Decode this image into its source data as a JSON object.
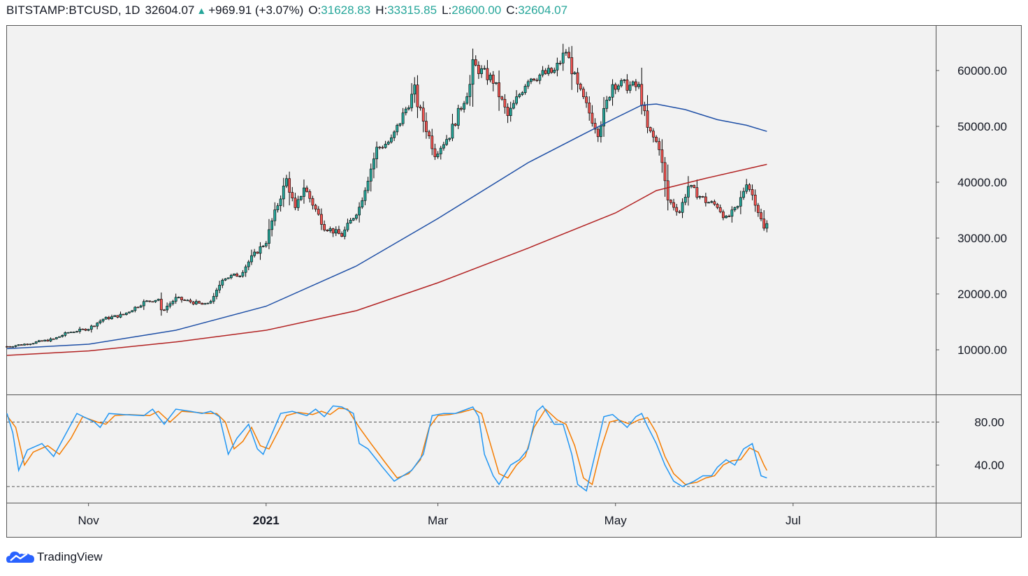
{
  "header": {
    "symbol": "BITSTAMP:BTCUSD, 1D",
    "last": "32604.07",
    "change": "+969.91 (+3.07%)",
    "o_label": "O:",
    "o_value": "31628.83",
    "h_label": "H:",
    "h_value": "33315.85",
    "l_label": "L:",
    "l_value": "28600.00",
    "c_label": "C:",
    "c_value": "32604.07",
    "up_color": "#26a69a"
  },
  "footer": {
    "brand": "TradingView",
    "logo_icon": "tradingview-cloud-icon"
  },
  "colors": {
    "up": "#26a69a",
    "down": "#ef5350",
    "candle_outline": "#000000",
    "ma_fast": "#1e4fa6",
    "ma_slow": "#b22222",
    "stoch_k": "#2196f3",
    "stoch_d": "#f57c00",
    "background": "#f2f2f2"
  },
  "chart_data": [
    {
      "type": "candlestick",
      "title": "BITSTAMP:BTCUSD, 1D",
      "ylim": [
        2000,
        68000
      ],
      "y_ticks": [
        "60000.00",
        "50000.00",
        "40000.00",
        "30000.00",
        "20000.00",
        "10000.00"
      ],
      "y_tick_values": [
        60000,
        50000,
        40000,
        30000,
        20000,
        10000
      ],
      "x_tick_labels": [
        "Nov",
        "2021",
        "Mar",
        "May",
        "Jul"
      ],
      "x_tick_dates": [
        "2020-11-01",
        "2021-01-01",
        "2021-03-01",
        "2021-05-01",
        "2021-07-01"
      ],
      "x_range": [
        "2020-10-04",
        "2021-08-19"
      ],
      "price_anchors": [
        [
          "2020-10-04",
          10600
        ],
        [
          "2020-10-10",
          11000
        ],
        [
          "2020-10-20",
          11900
        ],
        [
          "2020-10-25",
          13100
        ],
        [
          "2020-11-01",
          13800
        ],
        [
          "2020-11-06",
          15500
        ],
        [
          "2020-11-13",
          16300
        ],
        [
          "2020-11-20",
          18500
        ],
        [
          "2020-11-25",
          19100
        ],
        [
          "2020-11-26",
          16900
        ],
        [
          "2020-12-01",
          19200
        ],
        [
          "2020-12-11",
          18000
        ],
        [
          "2020-12-14",
          19300
        ],
        [
          "2020-12-17",
          22800
        ],
        [
          "2020-12-23",
          23500
        ],
        [
          "2020-12-27",
          26500
        ],
        [
          "2021-01-01",
          29400
        ],
        [
          "2021-01-03",
          33000
        ],
        [
          "2021-01-08",
          40500
        ],
        [
          "2021-01-11",
          35000
        ],
        [
          "2021-01-14",
          39200
        ],
        [
          "2021-01-21",
          32000
        ],
        [
          "2021-01-27",
          30500
        ],
        [
          "2021-02-02",
          35500
        ],
        [
          "2021-02-08",
          46000
        ],
        [
          "2021-02-13",
          47500
        ],
        [
          "2021-02-21",
          56500
        ],
        [
          "2021-02-22",
          54000
        ],
        [
          "2021-02-28",
          45200
        ],
        [
          "2021-03-05",
          48500
        ],
        [
          "2021-03-12",
          57400
        ],
        [
          "2021-03-13",
          61000
        ],
        [
          "2021-03-20",
          58200
        ],
        [
          "2021-03-25",
          51800
        ],
        [
          "2021-04-01",
          58700
        ],
        [
          "2021-04-10",
          59800
        ],
        [
          "2021-04-14",
          63500
        ],
        [
          "2021-04-18",
          57000
        ],
        [
          "2021-04-25",
          49000
        ],
        [
          "2021-04-30",
          57700
        ],
        [
          "2021-05-09",
          57000
        ],
        [
          "2021-05-12",
          49500
        ],
        [
          "2021-05-16",
          46400
        ],
        [
          "2021-05-19",
          36800
        ],
        [
          "2021-05-23",
          34700
        ],
        [
          "2021-05-26",
          39300
        ],
        [
          "2021-06-01",
          36600
        ],
        [
          "2021-06-05",
          35800
        ],
        [
          "2021-06-08",
          33400
        ],
        [
          "2021-06-12",
          35500
        ],
        [
          "2021-06-15",
          40100
        ],
        [
          "2021-06-18",
          36500
        ],
        [
          "2021-06-21",
          31600
        ],
        [
          "2021-06-22",
          32604
        ]
      ],
      "ma_fast_anchors": [
        [
          "2020-10-04",
          10200
        ],
        [
          "2020-11-01",
          11000
        ],
        [
          "2020-12-01",
          13500
        ],
        [
          "2021-01-01",
          17800
        ],
        [
          "2021-02-01",
          25000
        ],
        [
          "2021-03-01",
          33500
        ],
        [
          "2021-04-01",
          43500
        ],
        [
          "2021-04-20",
          48600
        ],
        [
          "2021-05-01",
          51500
        ],
        [
          "2021-05-10",
          53800
        ],
        [
          "2021-05-15",
          54000
        ],
        [
          "2021-05-25",
          53000
        ],
        [
          "2021-06-05",
          51200
        ],
        [
          "2021-06-15",
          50200
        ],
        [
          "2021-06-22",
          49100
        ]
      ],
      "ma_slow_anchors": [
        [
          "2020-10-04",
          9000
        ],
        [
          "2020-11-01",
          9800
        ],
        [
          "2020-12-01",
          11400
        ],
        [
          "2021-01-01",
          13500
        ],
        [
          "2021-02-01",
          17000
        ],
        [
          "2021-03-01",
          22000
        ],
        [
          "2021-04-01",
          28200
        ],
        [
          "2021-05-01",
          34500
        ],
        [
          "2021-05-15",
          38500
        ],
        [
          "2021-06-01",
          40700
        ],
        [
          "2021-06-22",
          43200
        ]
      ]
    },
    {
      "type": "line",
      "title": "",
      "ylim": [
        5,
        105
      ],
      "y_ticks": [
        "80.00",
        "40.00"
      ],
      "y_tick_values": [
        80,
        40
      ],
      "bands": [
        80,
        20
      ],
      "series": [
        {
          "key": "k",
          "anchors": [
            [
              "2020-10-04",
              88
            ],
            [
              "2020-10-06",
              70
            ],
            [
              "2020-10-08",
              35
            ],
            [
              "2020-10-11",
              54
            ],
            [
              "2020-10-16",
              60
            ],
            [
              "2020-10-20",
              48
            ],
            [
              "2020-10-24",
              68
            ],
            [
              "2020-10-28",
              88
            ],
            [
              "2020-11-03",
              80
            ],
            [
              "2020-11-05",
              75
            ],
            [
              "2020-11-08",
              88
            ],
            [
              "2020-11-13",
              87
            ],
            [
              "2020-11-20",
              86
            ],
            [
              "2020-11-23",
              92
            ],
            [
              "2020-11-27",
              78
            ],
            [
              "2020-12-01",
              92
            ],
            [
              "2020-12-06",
              90
            ],
            [
              "2020-12-10",
              88
            ],
            [
              "2020-12-13",
              90
            ],
            [
              "2020-12-16",
              85
            ],
            [
              "2020-12-19",
              50
            ],
            [
              "2020-12-22",
              65
            ],
            [
              "2020-12-26",
              78
            ],
            [
              "2020-12-29",
              55
            ],
            [
              "2020-12-31",
              50
            ],
            [
              "2021-01-06",
              88
            ],
            [
              "2021-01-10",
              90
            ],
            [
              "2021-01-15",
              86
            ],
            [
              "2021-01-18",
              92
            ],
            [
              "2021-01-21",
              85
            ],
            [
              "2021-01-24",
              95
            ],
            [
              "2021-01-27",
              94
            ],
            [
              "2021-01-31",
              88
            ],
            [
              "2021-02-02",
              60
            ],
            [
              "2021-02-05",
              55
            ],
            [
              "2021-02-10",
              38
            ],
            [
              "2021-02-14",
              25
            ],
            [
              "2021-02-17",
              30
            ],
            [
              "2021-02-20",
              35
            ],
            [
              "2021-02-24",
              50
            ],
            [
              "2021-02-27",
              86
            ],
            [
              "2021-03-03",
              88
            ],
            [
              "2021-03-07",
              88
            ],
            [
              "2021-03-11",
              92
            ],
            [
              "2021-03-13",
              94
            ],
            [
              "2021-03-15",
              85
            ],
            [
              "2021-03-17",
              50
            ],
            [
              "2021-03-20",
              30
            ],
            [
              "2021-03-22",
              22
            ],
            [
              "2021-03-26",
              40
            ],
            [
              "2021-03-29",
              45
            ],
            [
              "2021-04-01",
              55
            ],
            [
              "2021-04-04",
              90
            ],
            [
              "2021-04-06",
              95
            ],
            [
              "2021-04-10",
              78
            ],
            [
              "2021-04-13",
              78
            ],
            [
              "2021-04-16",
              50
            ],
            [
              "2021-04-18",
              22
            ],
            [
              "2021-04-21",
              16
            ],
            [
              "2021-04-24",
              50
            ],
            [
              "2021-04-27",
              85
            ],
            [
              "2021-04-30",
              87
            ],
            [
              "2021-05-03",
              80
            ],
            [
              "2021-05-05",
              75
            ],
            [
              "2021-05-08",
              85
            ],
            [
              "2021-05-10",
              88
            ],
            [
              "2021-05-12",
              76
            ],
            [
              "2021-05-15",
              60
            ],
            [
              "2021-05-18",
              40
            ],
            [
              "2021-05-21",
              25
            ],
            [
              "2021-05-24",
              20
            ],
            [
              "2021-05-28",
              25
            ],
            [
              "2021-05-31",
              30
            ],
            [
              "2021-06-03",
              30
            ],
            [
              "2021-06-05",
              38
            ],
            [
              "2021-06-08",
              45
            ],
            [
              "2021-06-11",
              40
            ],
            [
              "2021-06-14",
              55
            ],
            [
              "2021-06-17",
              60
            ],
            [
              "2021-06-19",
              40
            ],
            [
              "2021-06-20",
              30
            ],
            [
              "2021-06-22",
              28
            ]
          ]
        },
        {
          "key": "d",
          "anchors": [
            [
              "2020-10-04",
              86
            ],
            [
              "2020-10-07",
              75
            ],
            [
              "2020-10-10",
              40
            ],
            [
              "2020-10-13",
              52
            ],
            [
              "2020-10-18",
              58
            ],
            [
              "2020-10-22",
              50
            ],
            [
              "2020-10-26",
              65
            ],
            [
              "2020-10-30",
              85
            ],
            [
              "2020-11-04",
              80
            ],
            [
              "2020-11-07",
              78
            ],
            [
              "2020-11-10",
              86
            ],
            [
              "2020-11-15",
              87
            ],
            [
              "2020-11-22",
              86
            ],
            [
              "2020-11-25",
              90
            ],
            [
              "2020-11-29",
              80
            ],
            [
              "2020-12-03",
              90
            ],
            [
              "2020-12-08",
              89
            ],
            [
              "2020-12-12",
              88
            ],
            [
              "2020-12-15",
              88
            ],
            [
              "2020-12-18",
              80
            ],
            [
              "2020-12-21",
              55
            ],
            [
              "2020-12-24",
              62
            ],
            [
              "2020-12-27",
              75
            ],
            [
              "2020-12-30",
              58
            ],
            [
              "2021-01-02",
              55
            ],
            [
              "2021-01-08",
              86
            ],
            [
              "2021-01-12",
              89
            ],
            [
              "2021-01-17",
              87
            ],
            [
              "2021-01-20",
              90
            ],
            [
              "2021-01-23",
              87
            ],
            [
              "2021-01-26",
              93
            ],
            [
              "2021-01-29",
              92
            ],
            [
              "2021-02-02",
              75
            ],
            [
              "2021-02-06",
              60
            ],
            [
              "2021-02-11",
              42
            ],
            [
              "2021-02-15",
              28
            ],
            [
              "2021-02-19",
              32
            ],
            [
              "2021-02-23",
              45
            ],
            [
              "2021-02-26",
              75
            ],
            [
              "2021-03-01",
              86
            ],
            [
              "2021-03-05",
              87
            ],
            [
              "2021-03-09",
              89
            ],
            [
              "2021-03-13",
              92
            ],
            [
              "2021-03-16",
              88
            ],
            [
              "2021-03-19",
              60
            ],
            [
              "2021-03-22",
              32
            ],
            [
              "2021-03-25",
              28
            ],
            [
              "2021-03-28",
              40
            ],
            [
              "2021-03-31",
              48
            ],
            [
              "2021-04-03",
              75
            ],
            [
              "2021-04-07",
              92
            ],
            [
              "2021-04-11",
              82
            ],
            [
              "2021-04-14",
              78
            ],
            [
              "2021-04-17",
              58
            ],
            [
              "2021-04-20",
              28
            ],
            [
              "2021-04-23",
              22
            ],
            [
              "2021-04-26",
              55
            ],
            [
              "2021-04-29",
              80
            ],
            [
              "2021-05-02",
              82
            ],
            [
              "2021-05-06",
              78
            ],
            [
              "2021-05-09",
              82
            ],
            [
              "2021-05-12",
              84
            ],
            [
              "2021-05-15",
              70
            ],
            [
              "2021-05-18",
              48
            ],
            [
              "2021-05-21",
              32
            ],
            [
              "2021-05-25",
              22
            ],
            [
              "2021-05-29",
              24
            ],
            [
              "2021-06-01",
              28
            ],
            [
              "2021-06-04",
              30
            ],
            [
              "2021-06-07",
              40
            ],
            [
              "2021-06-10",
              44
            ],
            [
              "2021-06-13",
              45
            ],
            [
              "2021-06-16",
              56
            ],
            [
              "2021-06-19",
              52
            ],
            [
              "2021-06-21",
              40
            ],
            [
              "2021-06-22",
              35
            ]
          ]
        }
      ]
    }
  ]
}
